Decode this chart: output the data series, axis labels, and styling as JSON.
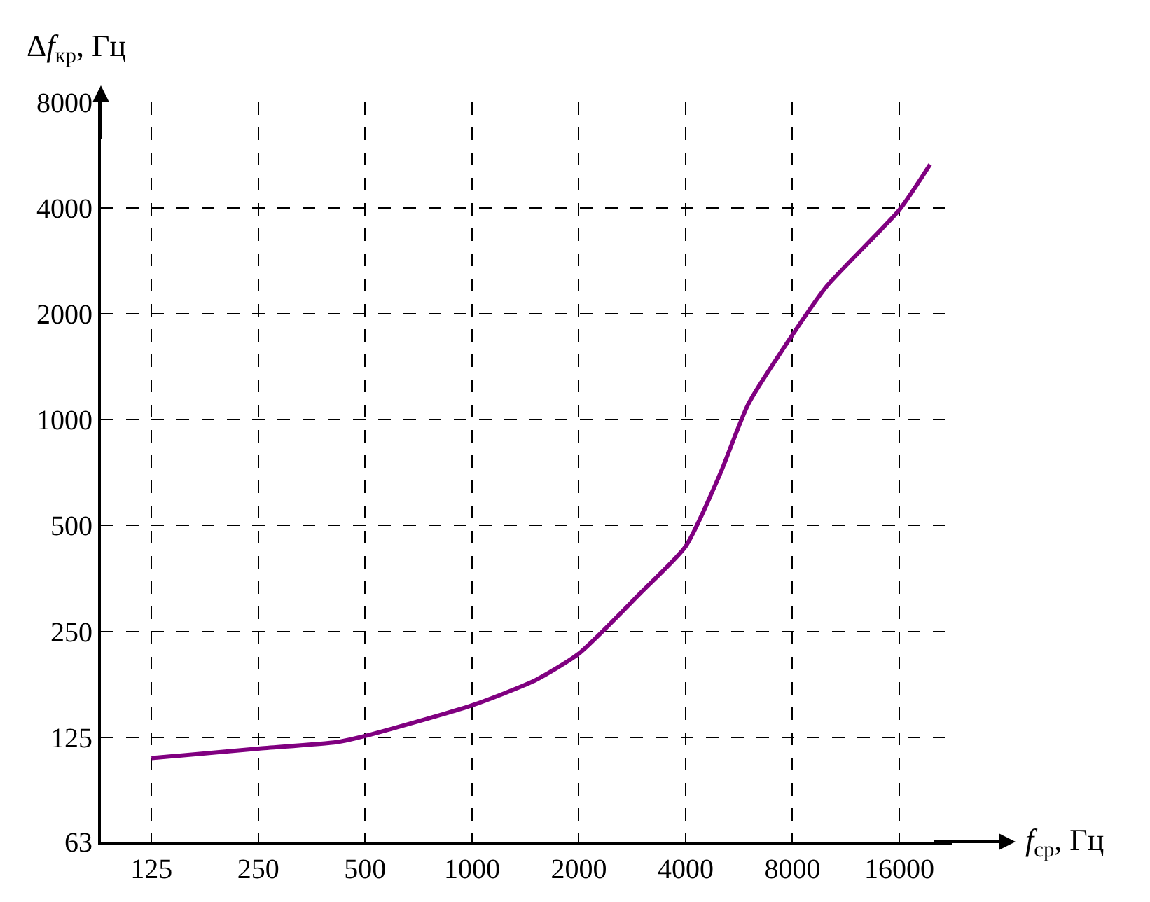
{
  "chart_data": {
    "type": "line",
    "xlabel": "f$_{ср}$, Гц",
    "ylabel": "Δf$_{кр}$, Гц",
    "log": "xy",
    "grid": true,
    "line_style": "solid",
    "marker": "none",
    "xlim": [
      90,
      22600
    ],
    "ylim": [
      63,
      8000
    ],
    "xticks": [
      125,
      250,
      500,
      1000,
      2000,
      4000,
      8000,
      16000
    ],
    "yticks": [
      63,
      125,
      250,
      500,
      1000,
      2000,
      4000,
      8000
    ],
    "x": [
      125,
      250,
      415,
      500,
      1000,
      1500,
      2000,
      3000,
      4000,
      5000,
      6000,
      8000,
      10000,
      16000,
      19540
    ],
    "series": [
      {
        "color": "#800080",
        "values": [
          109,
          116,
          121,
          126,
          154,
          181,
          216,
          323,
          436,
          700,
          1105,
          1743,
          2400,
          3950,
          5320
        ]
      }
    ]
  }
}
